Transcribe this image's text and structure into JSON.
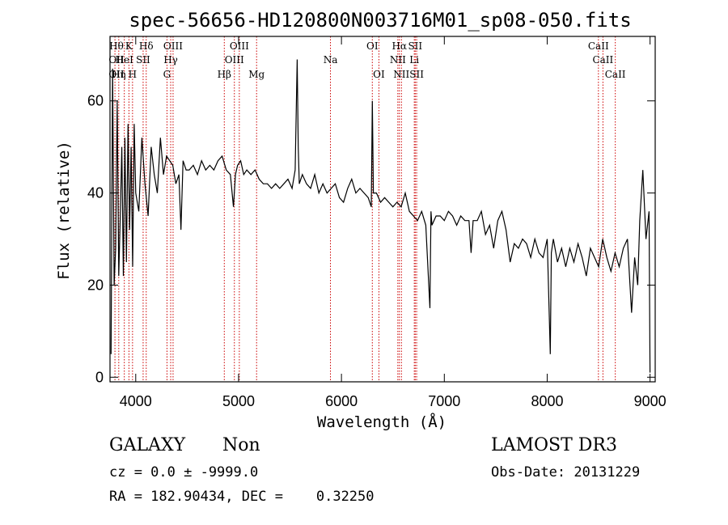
{
  "chart_data": {
    "type": "line",
    "title": "spec-56656-HD120800N003716M01_sp08-050.fits",
    "xlabel": "Wavelength (Å)",
    "ylabel": "Flux (relative)",
    "xlim": [
      3750,
      9050
    ],
    "ylim": [
      -1,
      74
    ],
    "xticks": [
      4000,
      5000,
      6000,
      7000,
      8000,
      9000
    ],
    "yticks": [
      0,
      20,
      40,
      60
    ],
    "series": [
      {
        "name": "spectrum",
        "x": [
          3760,
          3775,
          3790,
          3805,
          3820,
          3835,
          3850,
          3865,
          3880,
          3895,
          3910,
          3925,
          3940,
          3955,
          3970,
          3985,
          4000,
          4030,
          4060,
          4090,
          4120,
          4150,
          4180,
          4210,
          4240,
          4270,
          4300,
          4330,
          4360,
          4390,
          4420,
          4440,
          4460,
          4490,
          4520,
          4560,
          4600,
          4640,
          4680,
          4720,
          4760,
          4800,
          4840,
          4880,
          4920,
          4950,
          4970,
          4990,
          5020,
          5050,
          5080,
          5120,
          5160,
          5200,
          5240,
          5280,
          5320,
          5360,
          5400,
          5440,
          5480,
          5520,
          5550,
          5570,
          5580,
          5590,
          5620,
          5660,
          5700,
          5740,
          5780,
          5820,
          5860,
          5900,
          5940,
          5980,
          6020,
          6060,
          6100,
          6140,
          6180,
          6220,
          6260,
          6290,
          6300,
          6310,
          6340,
          6380,
          6420,
          6460,
          6500,
          6540,
          6580,
          6620,
          6660,
          6700,
          6740,
          6780,
          6820,
          6860,
          6870,
          6880,
          6920,
          6960,
          7000,
          7040,
          7080,
          7120,
          7160,
          7200,
          7240,
          7260,
          7280,
          7320,
          7360,
          7400,
          7440,
          7480,
          7520,
          7560,
          7600,
          7640,
          7680,
          7720,
          7760,
          7800,
          7840,
          7880,
          7920,
          7960,
          8000,
          8030,
          8040,
          8060,
          8100,
          8140,
          8180,
          8220,
          8260,
          8300,
          8340,
          8380,
          8420,
          8460,
          8500,
          8540,
          8580,
          8620,
          8660,
          8700,
          8740,
          8780,
          8800,
          8820,
          8850,
          8880,
          8900,
          8930,
          8960,
          8990,
          9000
        ],
        "y": [
          5,
          67,
          20,
          28,
          60,
          22,
          35,
          50,
          22,
          52,
          25,
          55,
          32,
          50,
          24,
          55,
          40,
          36,
          52,
          42,
          35,
          50,
          44,
          40,
          52,
          44,
          48,
          47,
          46,
          42,
          44,
          32,
          47,
          45,
          45,
          46,
          44,
          47,
          45,
          46,
          45,
          47,
          48,
          45,
          44,
          37,
          44,
          46,
          47,
          44,
          45,
          44,
          45,
          43,
          42,
          42,
          41,
          42,
          41,
          42,
          43,
          41,
          45,
          69,
          50,
          42,
          44,
          42,
          41,
          44,
          40,
          42,
          40,
          41,
          42,
          39,
          38,
          41,
          43,
          40,
          41,
          40,
          39,
          37,
          60,
          40,
          40,
          38,
          39,
          38,
          37,
          38,
          37,
          40,
          36,
          35,
          34,
          36,
          33,
          15,
          36,
          33,
          35,
          35,
          34,
          36,
          35,
          33,
          35,
          34,
          34,
          27,
          34,
          34,
          36,
          31,
          33,
          28,
          34,
          36,
          32,
          25,
          29,
          28,
          30,
          29,
          26,
          30,
          27,
          26,
          30,
          5,
          27,
          30,
          25,
          28,
          24,
          28,
          25,
          29,
          26,
          22,
          28,
          26,
          24,
          30,
          26,
          23,
          27,
          24,
          28,
          30,
          22,
          14,
          26,
          20,
          34,
          45,
          30,
          36,
          1
        ]
      }
    ],
    "line_markers": [
      {
        "name": "OII",
        "x": 3727,
        "row": 3
      },
      {
        "name": "OII",
        "x": 3727,
        "row": 2
      },
      {
        "name": "Hθ",
        "x": 3798,
        "row": 1
      },
      {
        "name": "Hη",
        "x": 3835,
        "row": 3
      },
      {
        "name": "HeI",
        "x": 3889,
        "row": 2
      },
      {
        "name": "K",
        "x": 3934,
        "row": 1
      },
      {
        "name": "H",
        "x": 3969,
        "row": 3
      },
      {
        "name": "SII",
        "x": 4072,
        "row": 2
      },
      {
        "name": "Hδ",
        "x": 4102,
        "row": 1
      },
      {
        "name": "OIII",
        "x": 4363,
        "row": 1
      },
      {
        "name": "Hγ",
        "x": 4340,
        "row": 2
      },
      {
        "name": "G",
        "x": 4304,
        "row": 3
      },
      {
        "name": "Hβ",
        "x": 4861,
        "row": 3
      },
      {
        "name": "OIII",
        "x": 4959,
        "row": 2
      },
      {
        "name": "OIII",
        "x": 5007,
        "row": 1
      },
      {
        "name": "Mg",
        "x": 5175,
        "row": 3
      },
      {
        "name": "Na",
        "x": 5893,
        "row": 2
      },
      {
        "name": "OI",
        "x": 6300,
        "row": 1
      },
      {
        "name": "OI",
        "x": 6364,
        "row": 3
      },
      {
        "name": "Hα",
        "x": 6563,
        "row": 1
      },
      {
        "name": "NII",
        "x": 6548,
        "row": 2
      },
      {
        "name": "NII",
        "x": 6583,
        "row": 3
      },
      {
        "name": "SII",
        "x": 6717,
        "row": 1
      },
      {
        "name": "Li",
        "x": 6708,
        "row": 2
      },
      {
        "name": "SII",
        "x": 6731,
        "row": 3
      },
      {
        "name": "CaII",
        "x": 8498,
        "row": 1
      },
      {
        "name": "CaII",
        "x": 8542,
        "row": 2
      },
      {
        "name": "CaII",
        "x": 8662,
        "row": 3
      }
    ],
    "marker_color": "#cc0000"
  },
  "info": {
    "class": "GALAXY",
    "subclass": "Non",
    "survey": "LAMOST DR3",
    "cz": "cz = 0.0 ± -9999.0",
    "obs_date": "Obs-Date: 20131229",
    "radec": "RA = 182.90434, DEC =    0.32250"
  }
}
